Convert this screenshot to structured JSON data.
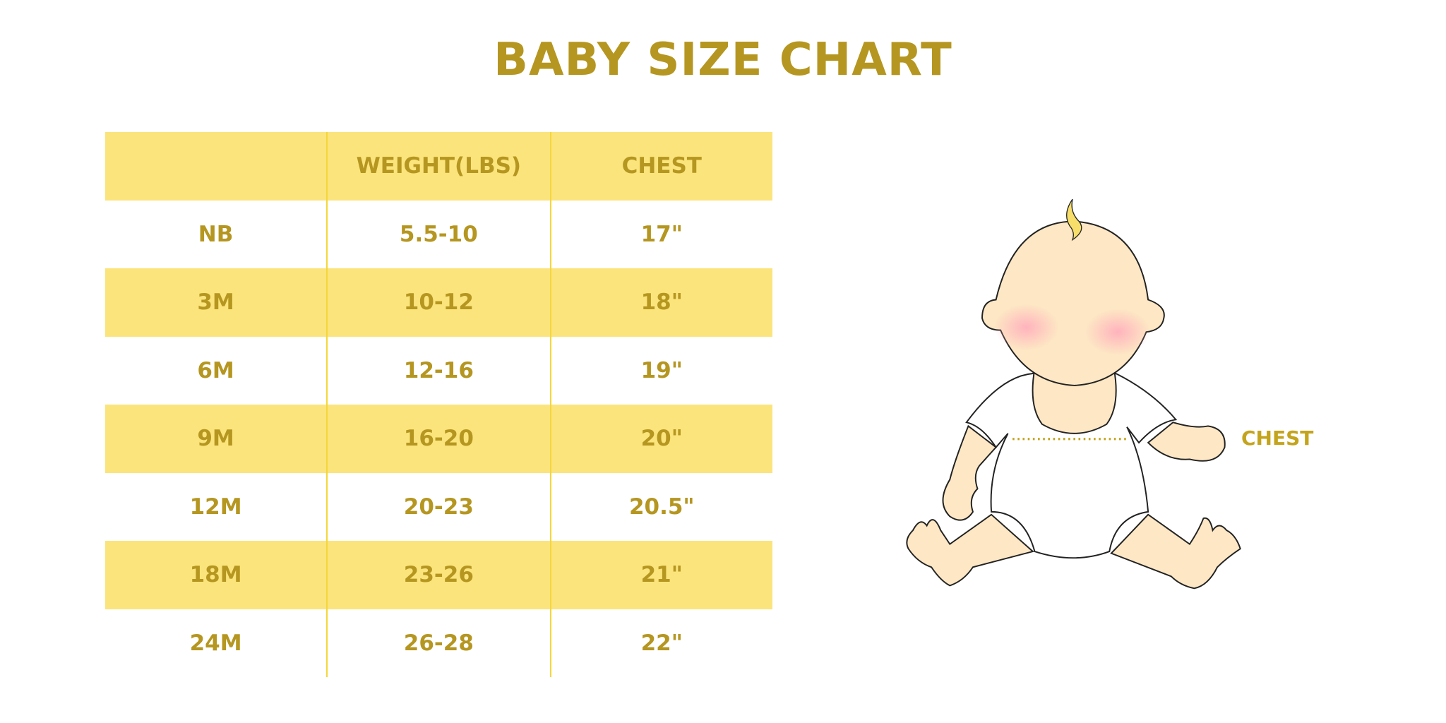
{
  "title": "BABY SIZE CHART",
  "table": {
    "headers": [
      "",
      "WEIGHT(LBS)",
      "CHEST"
    ],
    "rows": [
      [
        "NB",
        "5.5-10",
        "17\""
      ],
      [
        "3M",
        "10-12",
        "18\""
      ],
      [
        "6M",
        "12-16",
        "19\""
      ],
      [
        "9M",
        "16-20",
        "20\""
      ],
      [
        "12M",
        "20-23",
        "20.5\""
      ],
      [
        "18M",
        "23-26",
        "21\""
      ],
      [
        "24M",
        "26-28",
        "22\""
      ]
    ]
  },
  "illustration": {
    "label": "CHEST",
    "icon": "baby-illustration"
  },
  "colors": {
    "text": "#b59620",
    "band": "#fbe47c",
    "divider": "#f5d63a"
  }
}
